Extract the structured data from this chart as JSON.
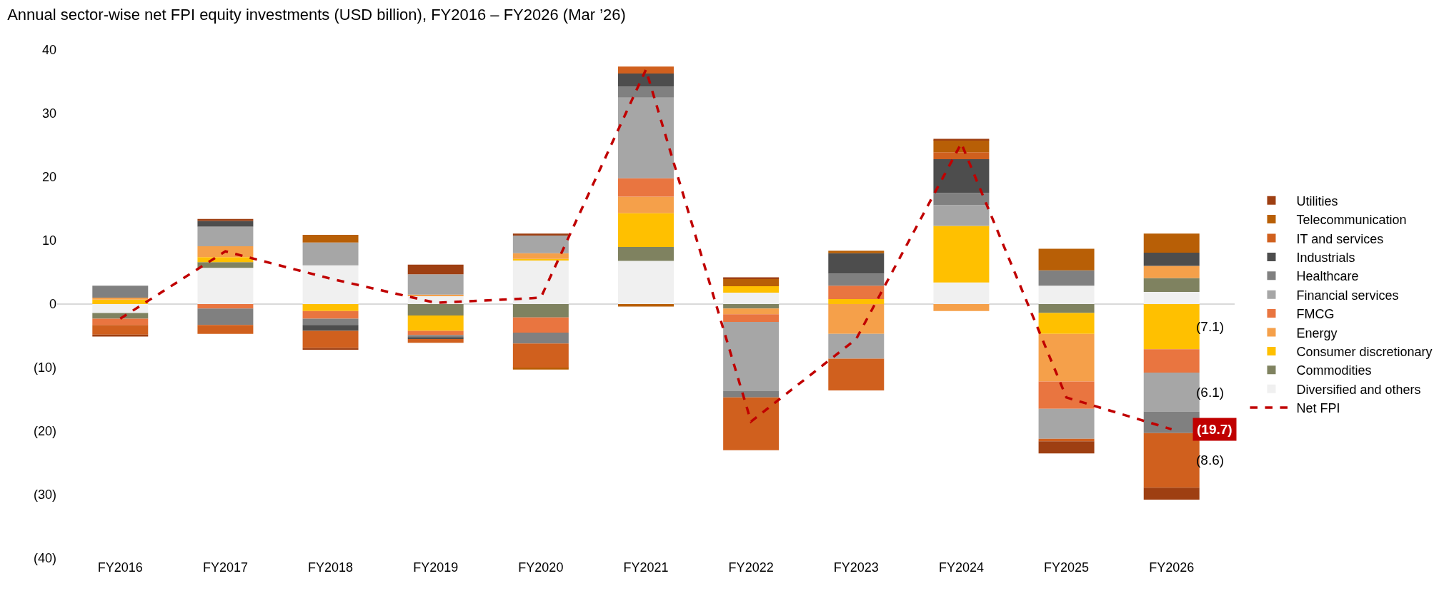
{
  "chart_data": {
    "type": "bar",
    "stacked": true,
    "title": "Annual sector-wise net FPI equity investments (USD billion), FY2016 – FY2026 (Mar ’26)",
    "categories": [
      "FY2016",
      "FY2017",
      "FY2018",
      "FY2019",
      "FY2020",
      "FY2021",
      "FY2022",
      "FY2023",
      "FY2024",
      "FY2025",
      "FY2026"
    ],
    "ylim": [
      -40,
      40
    ],
    "yticks": [
      {
        "value": -40,
        "label": "(40)"
      },
      {
        "value": -30,
        "label": "(30)"
      },
      {
        "value": -20,
        "label": "(20)"
      },
      {
        "value": -10,
        "label": "(10)"
      },
      0,
      10,
      20,
      30,
      40
    ],
    "grid": false,
    "legend": "right",
    "ref_lines": [
      {
        "axis": "y",
        "value": 0,
        "color": "#d9d9d9"
      }
    ],
    "series": [
      {
        "name": "Diversified and others",
        "color": "#f0f0f0",
        "values": [
          -1.4,
          5.7,
          6.1,
          1.3,
          6.9,
          6.8,
          1.8,
          null,
          3.4,
          2.9,
          1.9
        ]
      },
      {
        "name": "Commodities",
        "color": "#7f8260",
        "values": [
          -0.9,
          0.9,
          null,
          -1.8,
          -2.1,
          2.2,
          -0.7,
          null,
          null,
          -1.4,
          2.2
        ]
      },
      {
        "name": "Consumer discretionary",
        "color": "#ffc000",
        "values": [
          0.7,
          0.8,
          -1.1,
          -2.4,
          0.2,
          5.3,
          1.0,
          0.8,
          8.9,
          -3.3,
          -7.1
        ],
        "value_labels": [
          null,
          null,
          null,
          null,
          null,
          null,
          null,
          null,
          null,
          null,
          "(7.1)"
        ]
      },
      {
        "name": "Energy",
        "color": "#f5a04a",
        "values": [
          0.3,
          1.7,
          null,
          0.2,
          0.9,
          2.6,
          -0.9,
          -4.7,
          -1.1,
          -7.5,
          1.9
        ]
      },
      {
        "name": "FMCG",
        "color": "#e97540",
        "values": [
          -1.0,
          -0.7,
          -1.2,
          -0.7,
          -2.4,
          2.9,
          -1.2,
          2.1,
          null,
          -4.3,
          -3.7
        ]
      },
      {
        "name": "Financial services",
        "color": "#a6a6a6",
        "values": [
          null,
          3.1,
          3.6,
          3.2,
          2.8,
          12.7,
          -10.9,
          -3.9,
          3.3,
          -4.7,
          -6.1
        ],
        "value_labels": [
          null,
          null,
          null,
          null,
          null,
          null,
          null,
          null,
          null,
          null,
          "(6.1)"
        ]
      },
      {
        "name": "Healthcare",
        "color": "#808080",
        "values": [
          1.9,
          -2.6,
          -1.0,
          -0.3,
          -1.7,
          1.7,
          -1.0,
          1.9,
          1.9,
          2.4,
          -3.4
        ]
      },
      {
        "name": "Industrials",
        "color": "#4d4d4d",
        "values": [
          null,
          0.9,
          -0.9,
          -0.3,
          null,
          2.1,
          null,
          3.2,
          5.3,
          null,
          2.1
        ]
      },
      {
        "name": "IT and services",
        "color": "#d0601e",
        "values": [
          -1.5,
          -1.4,
          -2.7,
          -0.6,
          -3.9,
          1.1,
          -8.3,
          -5.0,
          1.1,
          -0.4,
          -8.6
        ],
        "value_labels": [
          null,
          null,
          null,
          null,
          null,
          null,
          null,
          null,
          null,
          null,
          "(8.6)"
        ]
      },
      {
        "name": "Telecommunication",
        "color": "#b85f06",
        "values": [
          null,
          null,
          1.2,
          null,
          -0.2,
          -0.4,
          1.2,
          0.4,
          1.9,
          3.4,
          3.0
        ]
      },
      {
        "name": "Utilities",
        "color": "#9e3f12",
        "values": [
          -0.3,
          0.3,
          -0.3,
          1.5,
          0.3,
          null,
          0.2,
          null,
          0.2,
          -1.9,
          -1.9
        ]
      },
      {
        "name": "Net FPI",
        "type": "line",
        "line_style": "dashed",
        "marker": "none",
        "color": "#c00000",
        "values": [
          -2.3,
          8.3,
          4.0,
          0.2,
          1.0,
          36.9,
          -18.5,
          -5.5,
          25.3,
          -14.7,
          -19.7
        ],
        "value_labels": [
          null,
          null,
          null,
          null,
          null,
          null,
          null,
          null,
          null,
          null,
          "(19.7)"
        ]
      }
    ]
  }
}
